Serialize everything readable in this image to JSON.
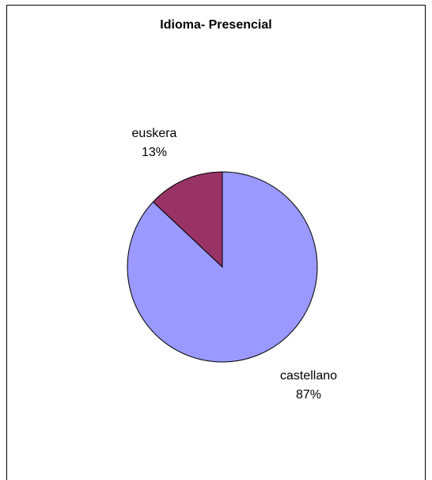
{
  "chart_data": {
    "type": "pie",
    "title": "Idioma- Presencial",
    "slices": [
      {
        "label": "castellano",
        "value": 87,
        "value_label": "87%",
        "color": "#9999ff"
      },
      {
        "label": "euskera",
        "value": 13,
        "value_label": "13%",
        "color": "#993366"
      }
    ],
    "start_angle": "12 o'clock",
    "direction": "clockwise",
    "legend": "none",
    "slice_border_color": "#000000"
  }
}
